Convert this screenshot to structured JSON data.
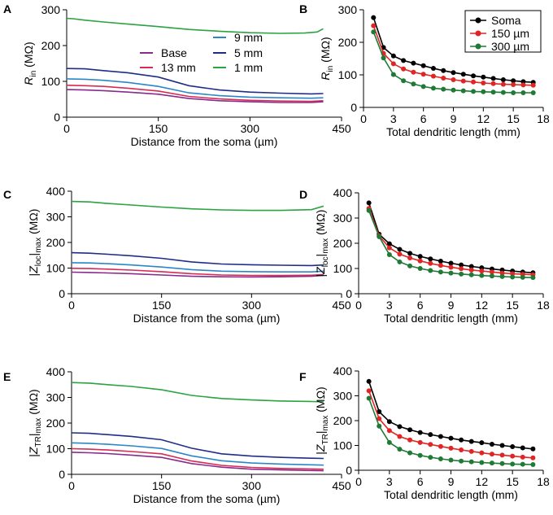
{
  "panels": [
    {
      "letter": "A",
      "chart_data": {
        "type": "line",
        "xlabel": "Distance from the soma (µm)",
        "ylabel_parts": [
          "R",
          "in",
          "(MΩ)"
        ],
        "ylabel_style": "italic",
        "xlim": [
          0,
          450
        ],
        "xticks": [
          0,
          150,
          300,
          450
        ],
        "ylim": [
          0,
          300
        ],
        "yticks": [
          0,
          100,
          200,
          300
        ],
        "legend": {
          "position": "center-right",
          "layout": "two-column",
          "order": [
            "9 mm",
            "Base",
            "5 mm",
            "13 mm",
            "1 mm"
          ]
        },
        "series": [
          {
            "name": "1 mm",
            "color": "#2aa341",
            "x": [
              0,
              10,
              30,
              60,
              100,
              150,
              200,
              250,
              300,
              350,
              390,
              410,
              420
            ],
            "y": [
              276,
              275,
              271,
              266,
              260,
              253,
              245,
              240,
              236,
              234,
              235,
              238,
              247
            ]
          },
          {
            "name": "5 mm",
            "color": "#1f2d86",
            "x": [
              0,
              30,
              60,
              100,
              150,
              200,
              250,
              300,
              350,
              400,
              420
            ],
            "y": [
              136,
              135,
              130,
              124,
              112,
              88,
              76,
              70,
              67,
              65,
              66
            ]
          },
          {
            "name": "9 mm",
            "color": "#2b86c9",
            "x": [
              0,
              30,
              60,
              100,
              150,
              200,
              250,
              300,
              350,
              400,
              420
            ],
            "y": [
              107,
              106,
              103,
              97,
              86,
              68,
              60,
              56,
              54,
              53,
              54
            ]
          },
          {
            "name": "13 mm",
            "color": "#d62b54",
            "x": [
              0,
              30,
              60,
              100,
              150,
              200,
              250,
              300,
              350,
              400,
              420
            ],
            "y": [
              89,
              88,
              86,
              81,
              73,
              58,
              51,
              47,
              45,
              44,
              46
            ]
          },
          {
            "name": "Base",
            "color": "#8a2a8a",
            "x": [
              0,
              30,
              60,
              100,
              150,
              200,
              250,
              300,
              350,
              400,
              420
            ],
            "y": [
              77,
              76,
              74,
              70,
              64,
              52,
              46,
              43,
              41,
              41,
              43
            ]
          }
        ]
      }
    },
    {
      "letter": "B",
      "chart_data": {
        "type": "line",
        "xlabel": "Total dendritic length (mm)",
        "ylabel_parts": [
          "R",
          "in",
          "(MΩ)"
        ],
        "ylabel_style": "italic",
        "xlim": [
          0,
          18
        ],
        "xticks": [
          0,
          3,
          6,
          9,
          12,
          15,
          18
        ],
        "ylim": [
          0,
          300
        ],
        "yticks": [
          0,
          100,
          200,
          300
        ],
        "markers": true,
        "legend": {
          "position": "top-right",
          "framed": true
        },
        "x": [
          1,
          2,
          3,
          4,
          5,
          6,
          7,
          8,
          9,
          10,
          11,
          12,
          13,
          14,
          15,
          16,
          17
        ],
        "series": [
          {
            "name": "Soma",
            "color": "#000000",
            "values": [
              276,
              184,
              158,
              144,
              136,
              128,
              120,
              113,
              107,
              102,
              97,
              93,
              89,
              85,
              82,
              79,
              77
            ]
          },
          {
            "name": "150 µm",
            "color": "#e02525",
            "values": [
              251,
              166,
              134,
              118,
              108,
              102,
              96,
              90,
              85,
              81,
              78,
              75,
              73,
              71,
              70,
              69,
              68
            ]
          },
          {
            "name": "300 µm",
            "color": "#1e7a35",
            "values": [
              232,
              152,
              101,
              82,
              72,
              64,
              59,
              56,
              53,
              51,
              49,
              48,
              47,
              46,
              45,
              45,
              45
            ]
          }
        ]
      }
    },
    {
      "letter": "C",
      "chart_data": {
        "type": "line",
        "xlabel": "Distance from the soma (µm)",
        "ylabel_parts": [
          "|Z",
          "loc",
          "|",
          "max",
          " (MΩ)"
        ],
        "xlim": [
          0,
          450
        ],
        "xticks": [
          0,
          150,
          300,
          450
        ],
        "ylim": [
          0,
          400
        ],
        "yticks": [
          0,
          100,
          200,
          300,
          400
        ],
        "series": [
          {
            "name": "1 mm",
            "color": "#2aa341",
            "x": [
              0,
              30,
              60,
              100,
              150,
              200,
              250,
              300,
              350,
              400,
              420
            ],
            "y": [
              360,
              358,
              352,
              346,
              338,
              331,
              327,
              325,
              325,
              328,
              342
            ]
          },
          {
            "name": "5 mm",
            "color": "#1f2d86",
            "x": [
              0,
              30,
              60,
              100,
              150,
              200,
              250,
              300,
              350,
              400,
              420
            ],
            "y": [
              160,
              158,
              154,
              148,
              138,
              124,
              116,
              113,
              111,
              110,
              112
            ]
          },
          {
            "name": "9 mm",
            "color": "#2b86c9",
            "x": [
              0,
              30,
              60,
              100,
              150,
              200,
              250,
              300,
              350,
              400,
              420
            ],
            "y": [
              121,
              120,
              117,
              112,
              104,
              94,
              88,
              86,
              85,
              85,
              88
            ]
          },
          {
            "name": "13 mm",
            "color": "#d62b54",
            "x": [
              0,
              30,
              60,
              100,
              150,
              200,
              250,
              300,
              350,
              400,
              420
            ],
            "y": [
              99,
              98,
              96,
              92,
              86,
              78,
              73,
              71,
              71,
              72,
              75
            ]
          },
          {
            "name": "Base",
            "color": "#8a2a8a",
            "x": [
              0,
              30,
              60,
              100,
              150,
              200,
              250,
              300,
              350,
              400,
              420
            ],
            "y": [
              84,
              83,
              81,
              78,
              73,
              68,
              66,
              65,
              66,
              68,
              72
            ]
          }
        ]
      }
    },
    {
      "letter": "D",
      "chart_data": {
        "type": "line",
        "xlabel": "Total dendritic length (mm)",
        "ylabel_parts": [
          "|Z",
          "loc",
          "|",
          "max",
          " (MΩ)"
        ],
        "xlim": [
          0,
          18
        ],
        "xticks": [
          0,
          3,
          6,
          9,
          12,
          15,
          18
        ],
        "ylim": [
          0,
          400
        ],
        "yticks": [
          0,
          100,
          200,
          300,
          400
        ],
        "markers": true,
        "x": [
          1,
          2,
          3,
          4,
          5,
          6,
          7,
          8,
          9,
          10,
          11,
          12,
          13,
          14,
          15,
          16,
          17
        ],
        "series": [
          {
            "name": "Soma",
            "color": "#000000",
            "values": [
              360,
              236,
              198,
              176,
              160,
              148,
              138,
              129,
              121,
              114,
              108,
              103,
              98,
              94,
              90,
              86,
              83
            ]
          },
          {
            "name": "150 µm",
            "color": "#e02525",
            "values": [
              338,
              230,
              182,
              157,
              142,
              130,
              120,
              112,
              105,
              99,
              94,
              90,
              86,
              82,
              79,
              77,
              75
            ]
          },
          {
            "name": "300 µm",
            "color": "#1e7a35",
            "values": [
              330,
              226,
              155,
              126,
              110,
              100,
              92,
              86,
              82,
              78,
              75,
              72,
              70,
              68,
              66,
              65,
              64
            ]
          }
        ]
      }
    },
    {
      "letter": "E",
      "chart_data": {
        "type": "line",
        "xlabel": "Distance from the soma (µm)",
        "ylabel_parts": [
          "|Z",
          "TR",
          "|",
          "max",
          " (MΩ)"
        ],
        "xlim": [
          0,
          450
        ],
        "xticks": [
          0,
          150,
          300,
          450
        ],
        "ylim": [
          0,
          400
        ],
        "yticks": [
          0,
          100,
          200,
          300,
          400
        ],
        "series": [
          {
            "name": "1 mm",
            "color": "#2aa341",
            "x": [
              0,
              30,
              60,
              100,
              150,
              200,
              250,
              300,
              350,
              400,
              420
            ],
            "y": [
              358,
              356,
              350,
              343,
              330,
              308,
              296,
              290,
              286,
              284,
              283
            ]
          },
          {
            "name": "5 mm",
            "color": "#1f2d86",
            "x": [
              0,
              30,
              60,
              100,
              150,
              200,
              250,
              300,
              350,
              400,
              420
            ],
            "y": [
              162,
              160,
              155,
              148,
              135,
              102,
              80,
              71,
              66,
              63,
              62
            ]
          },
          {
            "name": "9 mm",
            "color": "#2b86c9",
            "x": [
              0,
              30,
              60,
              100,
              150,
              200,
              250,
              300,
              350,
              400,
              420
            ],
            "y": [
              123,
              121,
              117,
              111,
              101,
              72,
              53,
              44,
              40,
              37,
              36
            ]
          },
          {
            "name": "13 mm",
            "color": "#d62b54",
            "x": [
              0,
              30,
              60,
              100,
              150,
              200,
              250,
              300,
              350,
              400,
              420
            ],
            "y": [
              100,
              98,
              95,
              89,
              80,
              52,
              35,
              27,
              23,
              21,
              20
            ]
          },
          {
            "name": "Base",
            "color": "#8a2a8a",
            "x": [
              0,
              30,
              60,
              100,
              150,
              200,
              250,
              300,
              350,
              400,
              420
            ],
            "y": [
              86,
              84,
              81,
              75,
              66,
              42,
              28,
              20,
              17,
              15,
              14
            ]
          }
        ]
      }
    },
    {
      "letter": "F",
      "chart_data": {
        "type": "line",
        "xlabel": "Total dendritic length (mm)",
        "ylabel_parts": [
          "|Z",
          "TR",
          "|",
          "max",
          " (MΩ)"
        ],
        "xlim": [
          0,
          18
        ],
        "xticks": [
          0,
          3,
          6,
          9,
          12,
          15,
          18
        ],
        "ylim": [
          0,
          400
        ],
        "yticks": [
          0,
          100,
          200,
          300,
          400
        ],
        "markers": true,
        "x": [
          1,
          2,
          3,
          4,
          5,
          6,
          7,
          8,
          9,
          10,
          11,
          12,
          13,
          14,
          15,
          16,
          17
        ],
        "series": [
          {
            "name": "Soma",
            "color": "#000000",
            "values": [
              358,
              236,
              196,
              176,
              163,
              152,
              144,
              136,
              129,
              122,
              116,
              111,
              105,
              100,
              95,
              90,
              86
            ]
          },
          {
            "name": "150 µm",
            "color": "#e02525",
            "values": [
              320,
              208,
              160,
              136,
              122,
              112,
              104,
              96,
              89,
              82,
              76,
              70,
              65,
              61,
              57,
              53,
              50
            ]
          },
          {
            "name": "300 µm",
            "color": "#1e7a35",
            "values": [
              290,
              178,
              112,
              85,
              70,
              60,
              52,
              46,
              41,
              37,
              34,
              31,
              29,
              27,
              25,
              24,
              23
            ]
          }
        ]
      }
    }
  ]
}
